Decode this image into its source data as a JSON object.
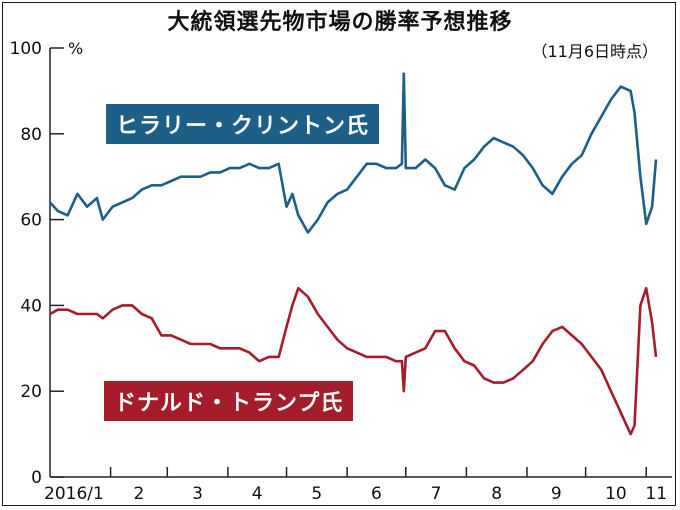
{
  "header": {
    "title": "大統領選先物市場の勝率予想推移",
    "note": "（11月6日時点）"
  },
  "colors": {
    "clinton": "#1d5f86",
    "trump": "#a51d2a",
    "axis": "#222222"
  },
  "chart_data": {
    "type": "line",
    "title": "大統領選先物市場の勝率予想推移",
    "ylabel": "",
    "yunit": "%",
    "ylim": [
      0,
      100
    ],
    "yticks": [
      0,
      20,
      40,
      60,
      80,
      100
    ],
    "xlim": [
      "2016-01-01",
      "2016-11-06"
    ],
    "months": [
      {
        "label": "2016/1",
        "date": "2016-01-01"
      },
      {
        "label": "2",
        "date": "2016-02-01"
      },
      {
        "label": "3",
        "date": "2016-03-01"
      },
      {
        "label": "4",
        "date": "2016-04-01"
      },
      {
        "label": "5",
        "date": "2016-05-01"
      },
      {
        "label": "6",
        "date": "2016-06-01"
      },
      {
        "label": "7",
        "date": "2016-07-01"
      },
      {
        "label": "8",
        "date": "2016-08-01"
      },
      {
        "label": "9",
        "date": "2016-09-01"
      },
      {
        "label": "10",
        "date": "2016-10-01"
      },
      {
        "label": "11",
        "date": "2016-11-01"
      }
    ],
    "grid": false,
    "series": [
      {
        "name": "ヒラリー・クリントン氏",
        "x": [
          "2016-01-01",
          "2016-01-05",
          "2016-01-10",
          "2016-01-15",
          "2016-01-20",
          "2016-01-25",
          "2016-01-28",
          "2016-02-02",
          "2016-02-07",
          "2016-02-12",
          "2016-02-17",
          "2016-02-22",
          "2016-02-27",
          "2016-03-03",
          "2016-03-08",
          "2016-03-13",
          "2016-03-18",
          "2016-03-23",
          "2016-03-28",
          "2016-04-02",
          "2016-04-07",
          "2016-04-12",
          "2016-04-17",
          "2016-04-22",
          "2016-04-27",
          "2016-05-01",
          "2016-05-04",
          "2016-05-07",
          "2016-05-12",
          "2016-05-17",
          "2016-05-22",
          "2016-05-27",
          "2016-06-01",
          "2016-06-06",
          "2016-06-11",
          "2016-06-16",
          "2016-06-21",
          "2016-06-26",
          "2016-06-29",
          "2016-06-30",
          "2016-07-01",
          "2016-07-06",
          "2016-07-11",
          "2016-07-16",
          "2016-07-21",
          "2016-07-26",
          "2016-07-31",
          "2016-08-05",
          "2016-08-10",
          "2016-08-15",
          "2016-08-20",
          "2016-08-25",
          "2016-08-30",
          "2016-09-04",
          "2016-09-09",
          "2016-09-14",
          "2016-09-19",
          "2016-09-24",
          "2016-09-29",
          "2016-10-04",
          "2016-10-09",
          "2016-10-14",
          "2016-10-19",
          "2016-10-24",
          "2016-10-26",
          "2016-10-29",
          "2016-11-01",
          "2016-11-04",
          "2016-11-06"
        ],
        "values": [
          64,
          62,
          61,
          66,
          63,
          65,
          60,
          63,
          64,
          65,
          67,
          68,
          68,
          69,
          70,
          70,
          70,
          71,
          71,
          72,
          72,
          73,
          72,
          72,
          73,
          63,
          66,
          61,
          57,
          60,
          64,
          66,
          67,
          70,
          73,
          73,
          72,
          72,
          73,
          94,
          72,
          72,
          74,
          72,
          68,
          67,
          72,
          74,
          77,
          79,
          78,
          77,
          75,
          72,
          68,
          66,
          70,
          73,
          75,
          80,
          84,
          88,
          91,
          90,
          85,
          70,
          59,
          63,
          74
        ]
      },
      {
        "name": "ドナルド・トランプ氏",
        "x": [
          "2016-01-01",
          "2016-01-05",
          "2016-01-10",
          "2016-01-15",
          "2016-01-20",
          "2016-01-25",
          "2016-01-28",
          "2016-02-02",
          "2016-02-07",
          "2016-02-12",
          "2016-02-17",
          "2016-02-22",
          "2016-02-27",
          "2016-03-03",
          "2016-03-08",
          "2016-03-13",
          "2016-03-18",
          "2016-03-23",
          "2016-03-28",
          "2016-04-02",
          "2016-04-07",
          "2016-04-12",
          "2016-04-17",
          "2016-04-22",
          "2016-04-27",
          "2016-05-01",
          "2016-05-04",
          "2016-05-07",
          "2016-05-12",
          "2016-05-17",
          "2016-05-22",
          "2016-05-27",
          "2016-06-01",
          "2016-06-06",
          "2016-06-11",
          "2016-06-16",
          "2016-06-21",
          "2016-06-26",
          "2016-06-29",
          "2016-06-30",
          "2016-07-01",
          "2016-07-06",
          "2016-07-11",
          "2016-07-16",
          "2016-07-21",
          "2016-07-26",
          "2016-07-31",
          "2016-08-05",
          "2016-08-10",
          "2016-08-15",
          "2016-08-20",
          "2016-08-25",
          "2016-08-30",
          "2016-09-04",
          "2016-09-09",
          "2016-09-14",
          "2016-09-19",
          "2016-09-24",
          "2016-09-29",
          "2016-10-04",
          "2016-10-09",
          "2016-10-14",
          "2016-10-19",
          "2016-10-24",
          "2016-10-26",
          "2016-10-29",
          "2016-11-01",
          "2016-11-04",
          "2016-11-06"
        ],
        "values": [
          38,
          39,
          39,
          38,
          38,
          38,
          37,
          39,
          40,
          40,
          38,
          37,
          33,
          33,
          32,
          31,
          31,
          31,
          30,
          30,
          30,
          29,
          27,
          28,
          28,
          35,
          40,
          44,
          42,
          38,
          35,
          32,
          30,
          29,
          28,
          28,
          28,
          27,
          27,
          20,
          28,
          29,
          30,
          34,
          34,
          30,
          27,
          26,
          23,
          22,
          22,
          23,
          25,
          27,
          31,
          34,
          35,
          33,
          31,
          28,
          25,
          20,
          15,
          10,
          12,
          40,
          44,
          36,
          28
        ]
      }
    ]
  }
}
